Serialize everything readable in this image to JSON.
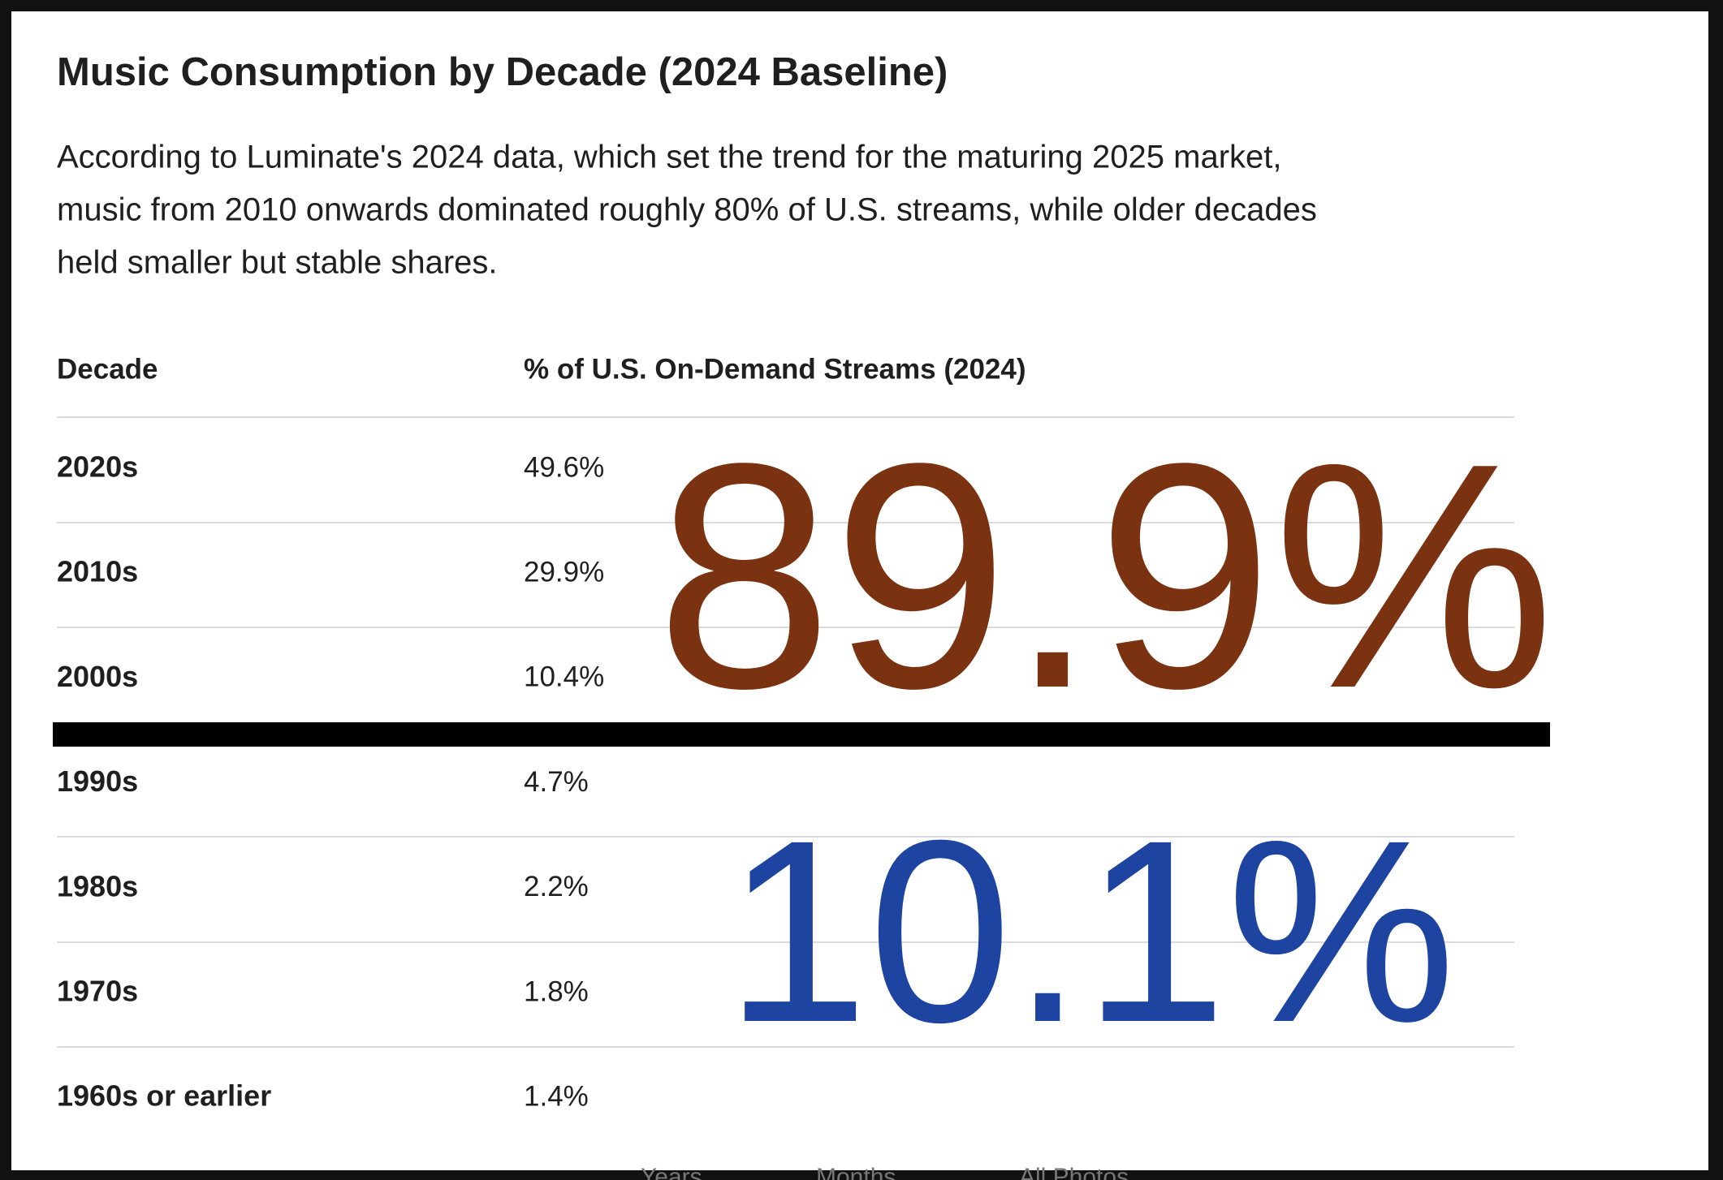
{
  "header": {
    "title": "Music Consumption by Decade (2024 Baseline)",
    "description": [
      "According to Luminate's 2024 data, which set the trend for the maturing 2025 market,",
      "music from 2010 onwards dominated roughly 80% of U.S. streams, while older decades",
      "held smaller but stable shares."
    ]
  },
  "table": {
    "columns": [
      "Decade",
      "% of U.S. On-Demand Streams (2024)"
    ],
    "rows": [
      [
        "2020s",
        "49.6%"
      ],
      [
        "2010s",
        "29.9%"
      ],
      [
        "2000s",
        "10.4%"
      ],
      [
        "1990s",
        "4.7%"
      ],
      [
        "1980s",
        "2.2%"
      ],
      [
        "1970s",
        "1.8%"
      ],
      [
        "1960s or earlier",
        "1.4%"
      ]
    ]
  },
  "annotations": {
    "upper": "89.9%",
    "lower": "10.1%"
  },
  "footer_tabs": [
    "Years",
    "Months",
    "All Photos"
  ]
}
